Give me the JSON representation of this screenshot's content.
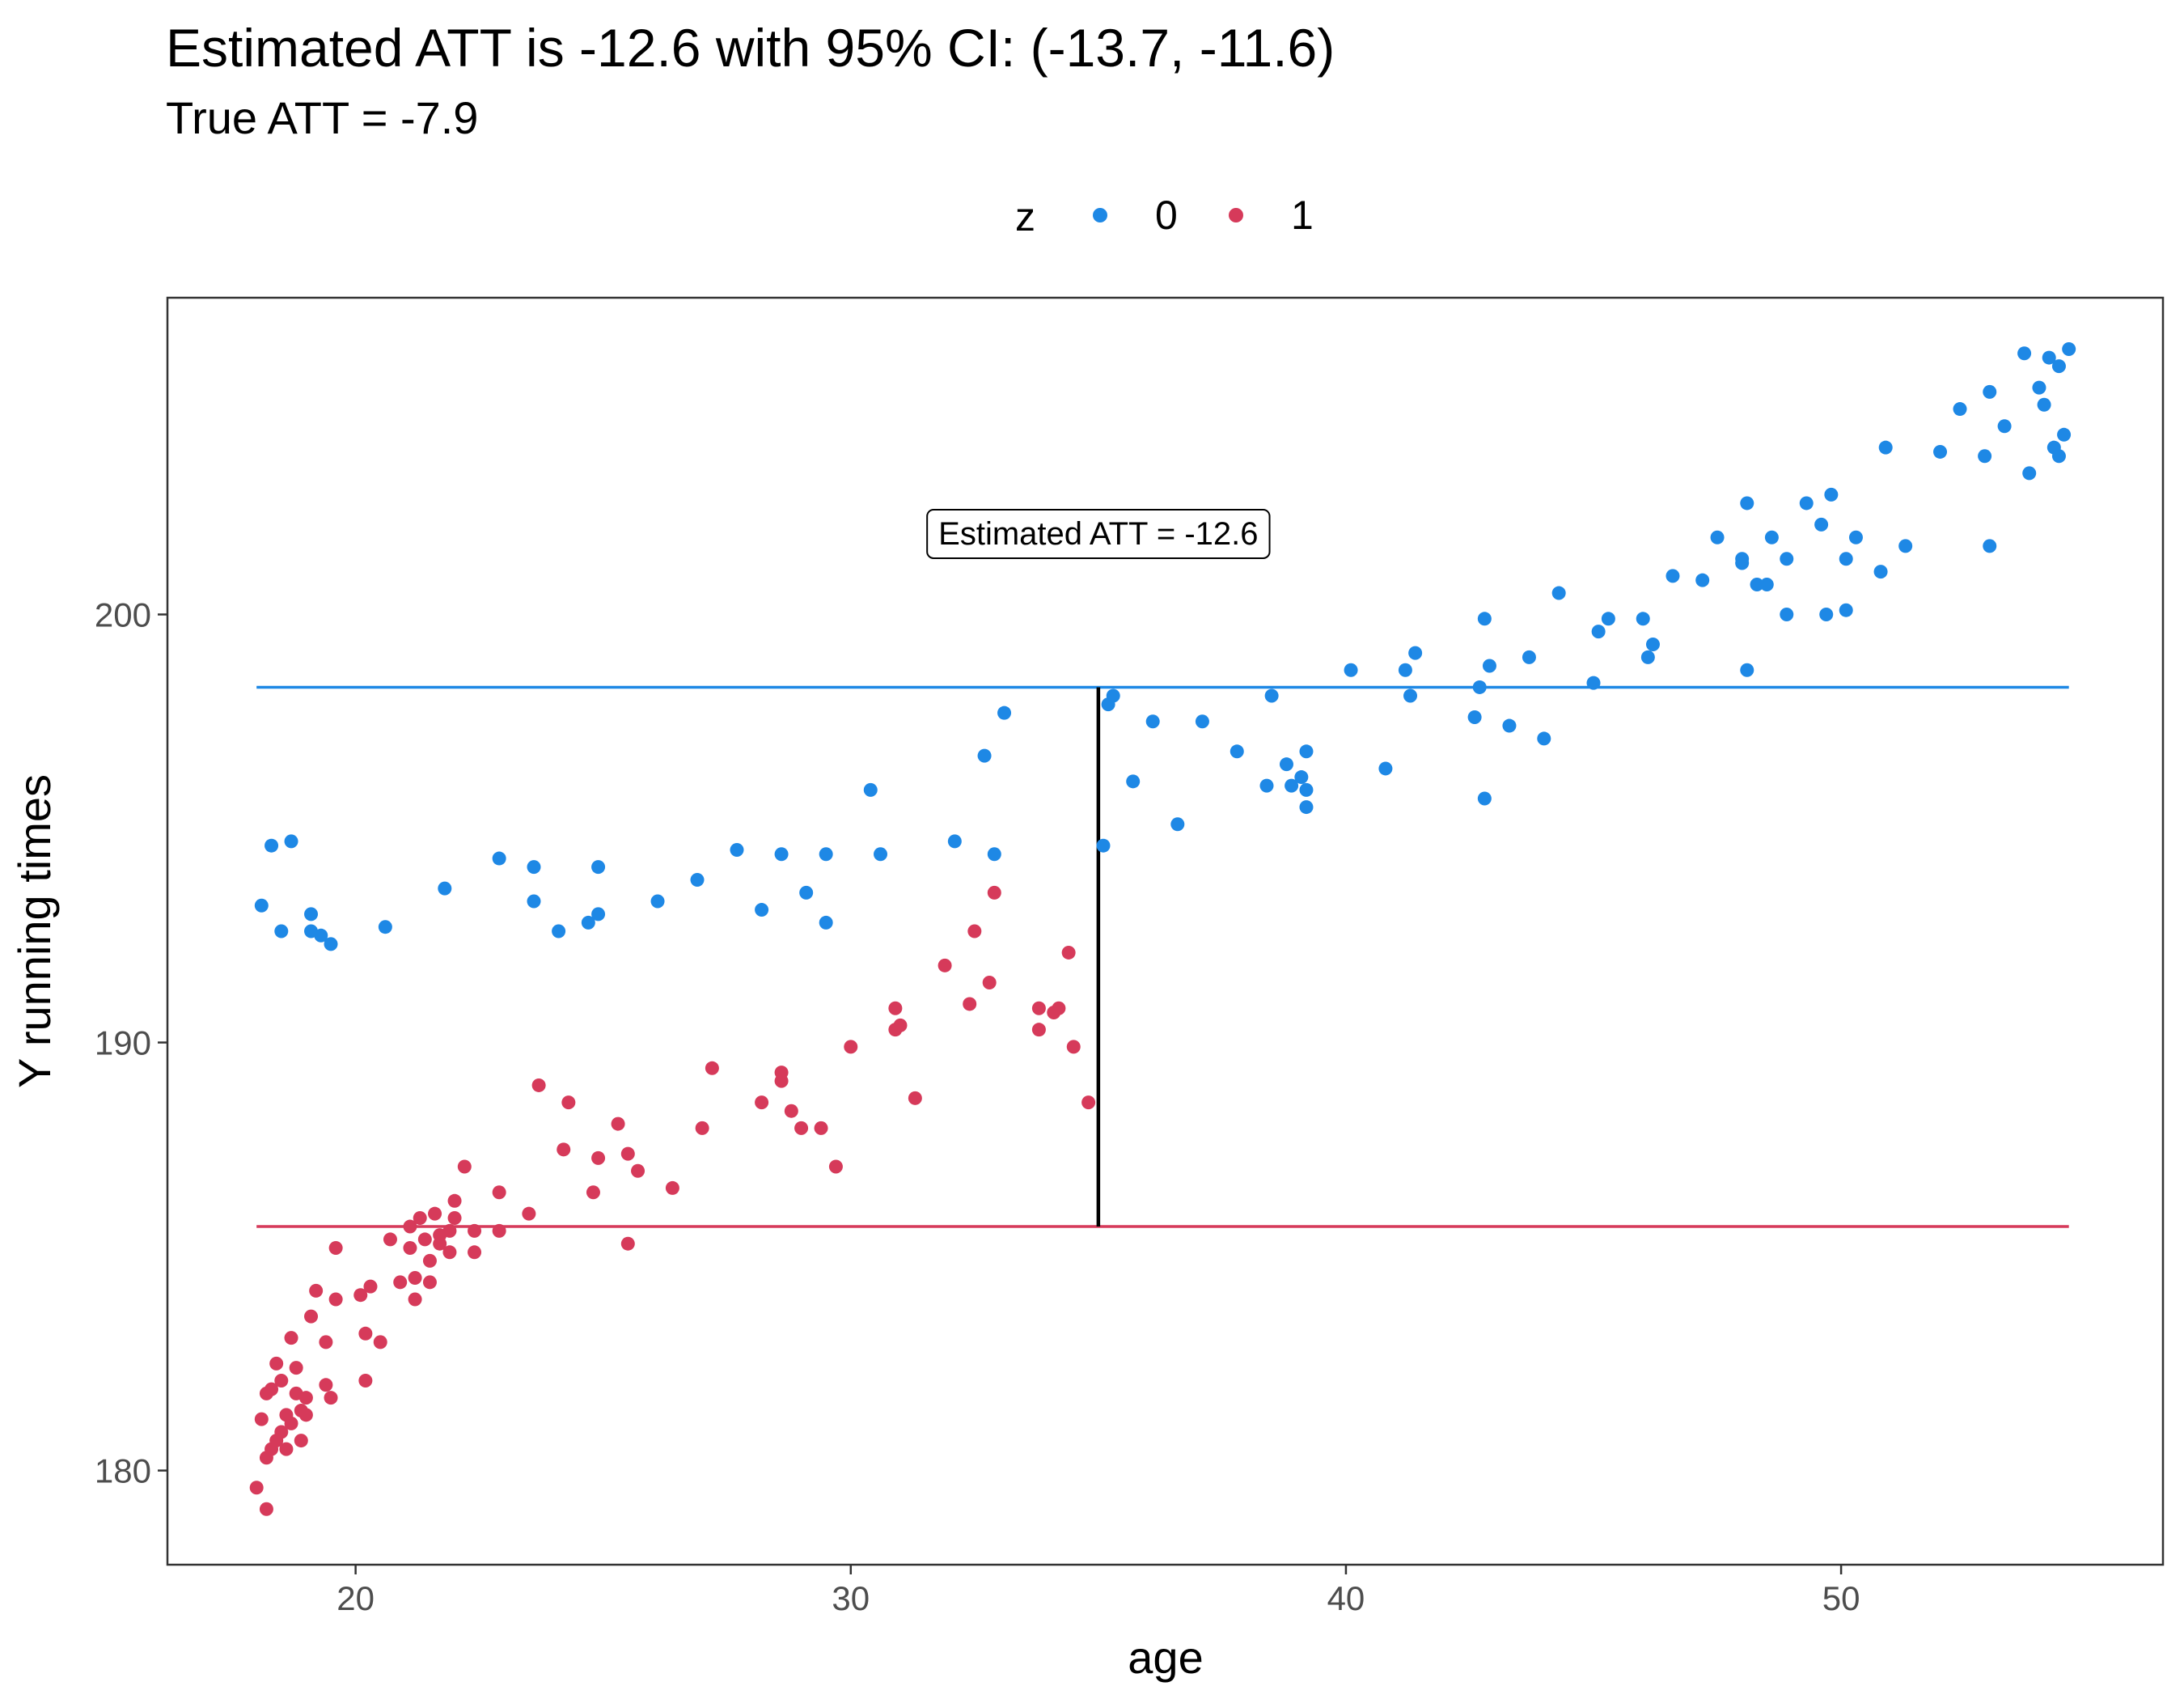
{
  "chart_data": {
    "type": "scatter",
    "title": "Estimated ATT is -12.6 with 95% CI: (-13.7, -11.6)",
    "subtitle": "True ATT = -7.9",
    "xlabel": "age",
    "ylabel": "Y running times",
    "xlim": [
      16.2,
      56.5
    ],
    "ylim": [
      177.8,
      207.4
    ],
    "x_ticks": [
      20,
      30,
      40,
      50
    ],
    "y_ticks": [
      180,
      190,
      200
    ],
    "grid": false,
    "legend": {
      "title": "z",
      "position": "top",
      "entries": [
        "0",
        "1"
      ]
    },
    "colors": {
      "0": "#1E88E5",
      "1": "#D63A5A"
    },
    "hlines": [
      {
        "group": "0",
        "y": 198.3,
        "x_range": [
          18,
          54.6
        ]
      },
      {
        "group": "1",
        "y": 185.7,
        "x_range": [
          18,
          54.6
        ]
      }
    ],
    "vsegment": {
      "x": 35,
      "y_from": 185.7,
      "y_to": 198.3,
      "color": "#000000"
    },
    "annotation": {
      "text": "Estimated ATT = -12.6",
      "x": 35,
      "y": 201.9
    },
    "series": [
      {
        "name": "0",
        "points": [
          [
            18.1,
            193.2
          ],
          [
            18.3,
            194.6
          ],
          [
            18.5,
            192.6
          ],
          [
            18.7,
            194.7
          ],
          [
            19.1,
            192.6
          ],
          [
            19.1,
            193.0
          ],
          [
            19.3,
            192.5
          ],
          [
            19.5,
            192.3
          ],
          [
            20.6,
            192.7
          ],
          [
            21.8,
            193.6
          ],
          [
            22.9,
            194.3
          ],
          [
            23.6,
            194.1
          ],
          [
            23.6,
            193.3
          ],
          [
            24.1,
            192.6
          ],
          [
            24.7,
            192.8
          ],
          [
            24.9,
            193.0
          ],
          [
            24.9,
            194.1
          ],
          [
            26.1,
            193.3
          ],
          [
            26.9,
            193.8
          ],
          [
            27.7,
            194.5
          ],
          [
            28.2,
            193.1
          ],
          [
            28.6,
            194.4
          ],
          [
            29.1,
            193.5
          ],
          [
            29.5,
            192.8
          ],
          [
            29.5,
            194.4
          ],
          [
            30.4,
            195.9
          ],
          [
            30.6,
            194.4
          ],
          [
            32.1,
            194.7
          ],
          [
            32.7,
            196.7
          ],
          [
            32.9,
            194.4
          ],
          [
            33.1,
            197.7
          ],
          [
            35.1,
            194.6
          ],
          [
            35.2,
            197.9
          ],
          [
            35.3,
            198.1
          ],
          [
            35.7,
            196.1
          ],
          [
            36.1,
            197.5
          ],
          [
            36.6,
            195.1
          ],
          [
            37.1,
            197.5
          ],
          [
            37.8,
            196.8
          ],
          [
            38.4,
            196.0
          ],
          [
            38.5,
            198.1
          ],
          [
            38.8,
            196.5
          ],
          [
            38.9,
            196.0
          ],
          [
            39.1,
            196.2
          ],
          [
            39.2,
            195.5
          ],
          [
            39.2,
            196.8
          ],
          [
            39.2,
            195.9
          ],
          [
            40.1,
            198.7
          ],
          [
            40.8,
            196.4
          ],
          [
            41.2,
            198.7
          ],
          [
            41.3,
            198.1
          ],
          [
            41.4,
            199.1
          ],
          [
            42.6,
            197.6
          ],
          [
            42.7,
            198.3
          ],
          [
            42.8,
            195.7
          ],
          [
            42.8,
            199.9
          ],
          [
            42.9,
            198.8
          ],
          [
            43.3,
            197.4
          ],
          [
            43.7,
            199.0
          ],
          [
            44.0,
            197.1
          ],
          [
            44.3,
            200.5
          ],
          [
            45.0,
            198.4
          ],
          [
            45.1,
            199.6
          ],
          [
            45.3,
            199.9
          ],
          [
            46.0,
            199.9
          ],
          [
            46.1,
            199.0
          ],
          [
            46.2,
            199.3
          ],
          [
            46.6,
            200.9
          ],
          [
            47.2,
            200.8
          ],
          [
            47.5,
            201.8
          ],
          [
            48.0,
            201.3
          ],
          [
            48.0,
            201.2
          ],
          [
            48.1,
            202.6
          ],
          [
            48.1,
            198.7
          ],
          [
            48.3,
            200.7
          ],
          [
            48.5,
            200.7
          ],
          [
            48.6,
            201.8
          ],
          [
            48.9,
            201.3
          ],
          [
            48.9,
            200.0
          ],
          [
            49.3,
            202.6
          ],
          [
            49.6,
            202.1
          ],
          [
            49.7,
            200.0
          ],
          [
            49.8,
            202.8
          ],
          [
            50.1,
            200.1
          ],
          [
            50.1,
            201.3
          ],
          [
            50.3,
            201.8
          ],
          [
            50.8,
            201.0
          ],
          [
            50.9,
            203.9
          ],
          [
            51.3,
            201.6
          ],
          [
            52.0,
            203.8
          ],
          [
            52.4,
            204.8
          ],
          [
            52.9,
            203.7
          ],
          [
            53.0,
            205.2
          ],
          [
            53.0,
            201.6
          ],
          [
            53.3,
            204.4
          ],
          [
            53.7,
            206.1
          ],
          [
            53.8,
            203.3
          ],
          [
            54.0,
            205.3
          ],
          [
            54.1,
            204.9
          ],
          [
            54.2,
            206.0
          ],
          [
            54.3,
            203.9
          ],
          [
            54.4,
            203.7
          ],
          [
            54.4,
            205.8
          ],
          [
            54.5,
            204.2
          ],
          [
            54.6,
            206.2
          ]
        ]
      },
      {
        "name": "1",
        "points": [
          [
            18.0,
            179.6
          ],
          [
            18.1,
            181.2
          ],
          [
            18.2,
            179.1
          ],
          [
            18.2,
            181.8
          ],
          [
            18.2,
            180.3
          ],
          [
            18.3,
            180.5
          ],
          [
            18.3,
            181.9
          ],
          [
            18.4,
            180.7
          ],
          [
            18.4,
            182.5
          ],
          [
            18.5,
            182.1
          ],
          [
            18.5,
            180.9
          ],
          [
            18.6,
            181.3
          ],
          [
            18.6,
            180.5
          ],
          [
            18.7,
            181.1
          ],
          [
            18.7,
            183.1
          ],
          [
            18.8,
            182.4
          ],
          [
            18.8,
            181.8
          ],
          [
            18.9,
            181.4
          ],
          [
            18.9,
            180.7
          ],
          [
            19.0,
            181.3
          ],
          [
            19.0,
            181.7
          ],
          [
            19.1,
            183.6
          ],
          [
            19.2,
            184.2
          ],
          [
            19.4,
            182.0
          ],
          [
            19.4,
            183.0
          ],
          [
            19.5,
            181.7
          ],
          [
            19.6,
            185.2
          ],
          [
            19.6,
            184.0
          ],
          [
            20.1,
            184.1
          ],
          [
            20.2,
            183.2
          ],
          [
            20.2,
            182.1
          ],
          [
            20.3,
            184.3
          ],
          [
            20.5,
            183.0
          ],
          [
            20.7,
            185.4
          ],
          [
            20.9,
            184.4
          ],
          [
            21.1,
            185.7
          ],
          [
            21.1,
            185.2
          ],
          [
            21.2,
            184.5
          ],
          [
            21.2,
            184.0
          ],
          [
            21.3,
            185.9
          ],
          [
            21.4,
            185.4
          ],
          [
            21.5,
            184.9
          ],
          [
            21.5,
            184.4
          ],
          [
            21.6,
            186.0
          ],
          [
            21.7,
            185.3
          ],
          [
            21.7,
            185.5
          ],
          [
            21.9,
            185.1
          ],
          [
            21.9,
            185.6
          ],
          [
            22.0,
            186.3
          ],
          [
            22.0,
            185.9
          ],
          [
            22.2,
            187.1
          ],
          [
            22.4,
            185.6
          ],
          [
            22.4,
            185.1
          ],
          [
            22.9,
            186.5
          ],
          [
            22.9,
            185.6
          ],
          [
            23.5,
            186.0
          ],
          [
            23.7,
            189.0
          ],
          [
            24.2,
            187.5
          ],
          [
            24.3,
            188.6
          ],
          [
            24.8,
            186.5
          ],
          [
            24.9,
            187.3
          ],
          [
            25.3,
            188.1
          ],
          [
            25.5,
            187.4
          ],
          [
            25.5,
            185.3
          ],
          [
            25.7,
            187.0
          ],
          [
            26.4,
            186.6
          ],
          [
            27.0,
            188.0
          ],
          [
            27.2,
            189.4
          ],
          [
            28.2,
            188.6
          ],
          [
            28.6,
            189.1
          ],
          [
            28.6,
            189.3
          ],
          [
            28.8,
            188.4
          ],
          [
            29.0,
            188.0
          ],
          [
            29.4,
            188.0
          ],
          [
            29.7,
            187.1
          ],
          [
            30.0,
            189.9
          ],
          [
            30.9,
            190.3
          ],
          [
            30.9,
            190.8
          ],
          [
            31.0,
            190.4
          ],
          [
            31.3,
            188.7
          ],
          [
            31.9,
            191.8
          ],
          [
            32.4,
            190.9
          ],
          [
            32.5,
            192.6
          ],
          [
            32.8,
            191.4
          ],
          [
            32.9,
            193.5
          ],
          [
            33.8,
            190.8
          ],
          [
            33.8,
            190.3
          ],
          [
            34.1,
            190.7
          ],
          [
            34.2,
            190.8
          ],
          [
            34.4,
            192.1
          ],
          [
            34.5,
            189.9
          ],
          [
            34.8,
            188.6
          ]
        ]
      }
    ]
  }
}
